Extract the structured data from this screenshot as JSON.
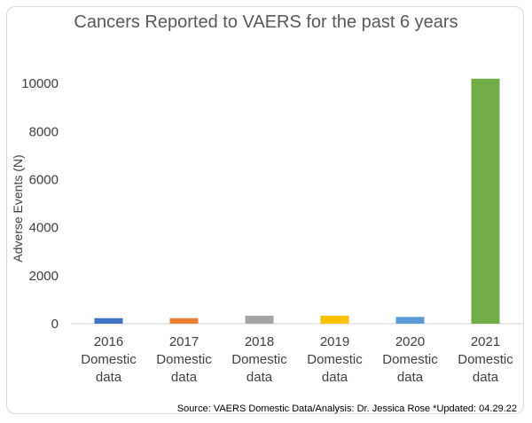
{
  "chart_data": {
    "type": "bar",
    "title": "Cancers Reported to VAERS for the past 6 years",
    "ylabel": "Adverse Events (N)",
    "xlabel": "",
    "categories": [
      [
        "2016",
        "Domestic",
        "data"
      ],
      [
        "2017",
        "Domestic",
        "data"
      ],
      [
        "2018",
        "Domestic",
        "data"
      ],
      [
        "2019",
        "Domestic",
        "data"
      ],
      [
        "2020",
        "Domestic",
        "data"
      ],
      [
        "2021",
        "Domestic",
        "data"
      ]
    ],
    "values": [
      230,
      230,
      330,
      330,
      280,
      10200
    ],
    "colors": [
      "#4472c4",
      "#ed7d31",
      "#a5a5a5",
      "#ffc000",
      "#5b9bd5",
      "#70ad47"
    ],
    "ylim": [
      0,
      12000
    ],
    "yticks": [
      0,
      2000,
      4000,
      6000,
      8000,
      10000
    ],
    "grid": false,
    "legend": "none",
    "source": "Source: VAERS Domestic Data/Analysis: Dr. Jessica Rose *Updated: 04.29.22"
  }
}
